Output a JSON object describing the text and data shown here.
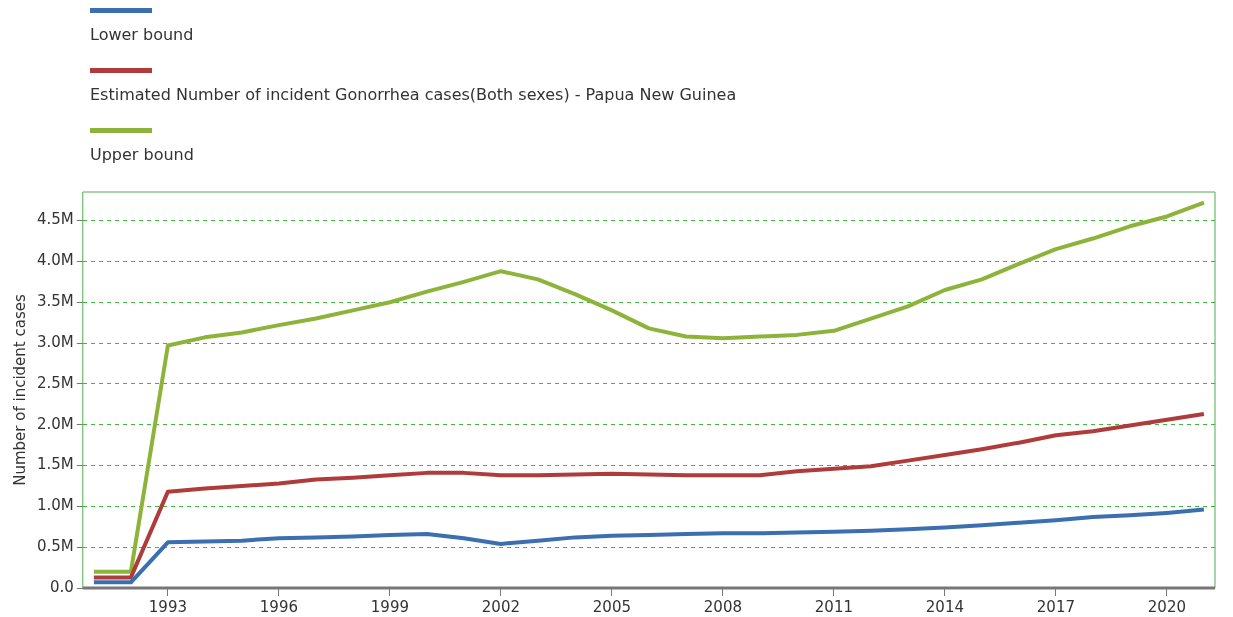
{
  "chart_data": {
    "type": "line",
    "ylabel": "Number of incident cases",
    "x": [
      1991,
      1992,
      1993,
      1994,
      1995,
      1996,
      1997,
      1998,
      1999,
      2000,
      2001,
      2002,
      2003,
      2004,
      2005,
      2006,
      2007,
      2008,
      2009,
      2010,
      2011,
      2012,
      2013,
      2014,
      2015,
      2016,
      2017,
      2018,
      2019,
      2020,
      2021
    ],
    "series": [
      {
        "name": "Lower bound",
        "color": "#3b6fb0",
        "values": [
          70000,
          70000,
          560000,
          570000,
          580000,
          610000,
          620000,
          630000,
          650000,
          660000,
          610000,
          540000,
          580000,
          620000,
          640000,
          650000,
          660000,
          670000,
          670000,
          680000,
          690000,
          700000,
          720000,
          740000,
          770000,
          800000,
          830000,
          870000,
          890000,
          920000,
          960000
        ]
      },
      {
        "name": "Estimated Number of incident Gonorrhea cases(Both sexes) - Papua New Guinea",
        "color": "#b03b3b",
        "values": [
          130000,
          130000,
          1180000,
          1220000,
          1250000,
          1280000,
          1330000,
          1350000,
          1380000,
          1410000,
          1410000,
          1380000,
          1380000,
          1390000,
          1400000,
          1390000,
          1380000,
          1380000,
          1380000,
          1430000,
          1460000,
          1490000,
          1560000,
          1630000,
          1700000,
          1780000,
          1870000,
          1920000,
          1990000,
          2060000,
          2130000
        ]
      },
      {
        "name": "Upper bound",
        "color": "#8db33b",
        "values": [
          200000,
          200000,
          2970000,
          3070000,
          3130000,
          3220000,
          3300000,
          3400000,
          3500000,
          3630000,
          3750000,
          3880000,
          3780000,
          3600000,
          3400000,
          3180000,
          3080000,
          3060000,
          3080000,
          3100000,
          3150000,
          3300000,
          3450000,
          3650000,
          3780000,
          3970000,
          4150000,
          4280000,
          4430000,
          4550000,
          4720000
        ]
      }
    ],
    "xlim": [
      1990.7,
      2021.3
    ],
    "xticks": [
      1993,
      1996,
      1999,
      2002,
      2005,
      2008,
      2011,
      2014,
      2017,
      2020
    ],
    "ylim": [
      0,
      4850000
    ],
    "yticks": [
      {
        "value": 0,
        "label": "0.0"
      },
      {
        "value": 500000,
        "label": "0.5M"
      },
      {
        "value": 1000000,
        "label": "1.0M"
      },
      {
        "value": 1500000,
        "label": "1.5M"
      },
      {
        "value": 2000000,
        "label": "2.0M"
      },
      {
        "value": 2500000,
        "label": "2.5M"
      },
      {
        "value": 3000000,
        "label": "3.0M"
      },
      {
        "value": 3500000,
        "label": "3.5M"
      },
      {
        "value": 4000000,
        "label": "4.0M"
      },
      {
        "value": 4500000,
        "label": "4.5M"
      }
    ],
    "grid": "y",
    "legend": "top left",
    "marker": "none",
    "line_style": "solid"
  }
}
